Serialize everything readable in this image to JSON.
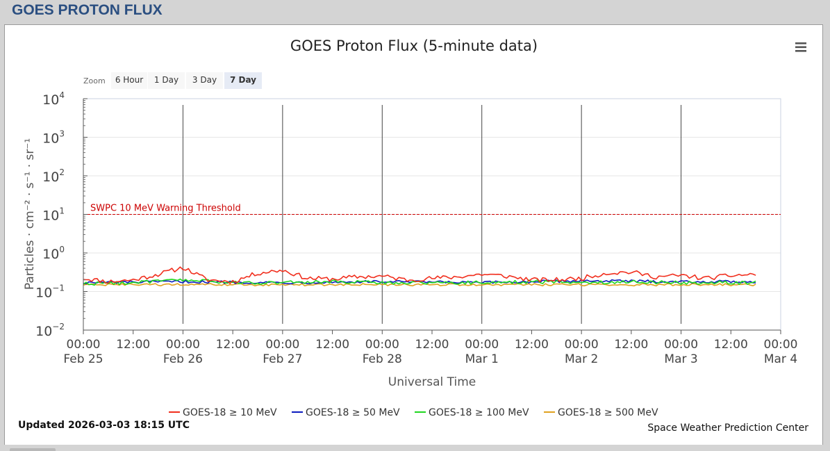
{
  "page": {
    "title": "GOES PROTON FLUX"
  },
  "menu_icon": "hamburger-menu-icon",
  "zoom": {
    "label": "Zoom",
    "buttons": [
      {
        "label": "6 Hour",
        "selected": false
      },
      {
        "label": "1 Day",
        "selected": false
      },
      {
        "label": "3 Day",
        "selected": false
      },
      {
        "label": "7 Day",
        "selected": true
      }
    ]
  },
  "footer": {
    "updated": "Updated 2026-03-03 18:15 UTC",
    "credit": "Space Weather Prediction Center"
  },
  "chart_data": {
    "type": "line",
    "title": "GOES Proton Flux (5-minute data)",
    "xlabel": "Universal Time",
    "ylabel": "Particles · cm⁻² · s⁻¹ · sr⁻¹",
    "y_scale": "log",
    "ylim": [
      0.01,
      10000
    ],
    "y_ticks": [
      {
        "base": "10",
        "exp": "4"
      },
      {
        "base": "10",
        "exp": "3"
      },
      {
        "base": "10",
        "exp": "2"
      },
      {
        "base": "10",
        "exp": "1"
      },
      {
        "base": "10",
        "exp": "0"
      },
      {
        "base": "10",
        "exp": "−1"
      },
      {
        "base": "10",
        "exp": "−2"
      }
    ],
    "xlim": [
      "2026-02-25 00:00",
      "2026-03-04 00:00"
    ],
    "x_ticks": [
      {
        "time": "00:00",
        "date": "Feb 25"
      },
      {
        "time": "12:00",
        "date": ""
      },
      {
        "time": "00:00",
        "date": "Feb 26"
      },
      {
        "time": "12:00",
        "date": ""
      },
      {
        "time": "00:00",
        "date": "Feb 27"
      },
      {
        "time": "12:00",
        "date": ""
      },
      {
        "time": "00:00",
        "date": "Feb 28"
      },
      {
        "time": "12:00",
        "date": ""
      },
      {
        "time": "00:00",
        "date": "Mar 1"
      },
      {
        "time": "12:00",
        "date": ""
      },
      {
        "time": "00:00",
        "date": "Mar 2"
      },
      {
        "time": "12:00",
        "date": ""
      },
      {
        "time": "00:00",
        "date": "Mar 3"
      },
      {
        "time": "12:00",
        "date": ""
      },
      {
        "time": "00:00",
        "date": "Mar 4"
      }
    ],
    "day_lines": [
      "2026-02-26 00:00",
      "2026-02-27 00:00",
      "2026-02-28 00:00",
      "2026-03-01 00:00",
      "2026-03-02 00:00",
      "2026-03-03 00:00"
    ],
    "threshold": {
      "label": "SWPC 10 MeV Warning Threshold",
      "value": 10,
      "color": "#cc0000"
    },
    "legend_position": "bottom-center",
    "series": [
      {
        "name": "GOES-18 ≥ 10 MeV",
        "color": "#f12e1d",
        "x": [
          "2026-02-25 00:00",
          "2026-02-25 06:00",
          "2026-02-25 12:00",
          "2026-02-25 18:00",
          "2026-02-26 00:00",
          "2026-02-26 06:00",
          "2026-02-26 12:00",
          "2026-02-26 18:00",
          "2026-02-27 00:00",
          "2026-02-27 06:00",
          "2026-02-27 12:00",
          "2026-02-27 18:00",
          "2026-02-28 00:00",
          "2026-02-28 06:00",
          "2026-02-28 12:00",
          "2026-02-28 18:00",
          "2026-03-01 00:00",
          "2026-03-01 06:00",
          "2026-03-01 12:00",
          "2026-03-01 18:00",
          "2026-03-02 00:00",
          "2026-03-02 06:00",
          "2026-03-02 12:00",
          "2026-03-02 18:00",
          "2026-03-03 00:00",
          "2026-03-03 06:00",
          "2026-03-03 12:00",
          "2026-03-03 18:15"
        ],
        "values": [
          0.22,
          0.18,
          0.2,
          0.28,
          0.42,
          0.2,
          0.18,
          0.3,
          0.36,
          0.22,
          0.21,
          0.24,
          0.25,
          0.2,
          0.22,
          0.24,
          0.28,
          0.25,
          0.2,
          0.2,
          0.22,
          0.3,
          0.32,
          0.24,
          0.26,
          0.22,
          0.26,
          0.28
        ]
      },
      {
        "name": "GOES-18 ≥ 50 MeV",
        "color": "#0b1bbf",
        "x": [
          "2026-02-25 00:00",
          "2026-02-26 00:00",
          "2026-02-27 00:00",
          "2026-02-28 00:00",
          "2026-03-01 00:00",
          "2026-03-02 00:00",
          "2026-03-03 00:00",
          "2026-03-03 18:15"
        ],
        "values": [
          0.17,
          0.18,
          0.17,
          0.18,
          0.17,
          0.19,
          0.18,
          0.18
        ]
      },
      {
        "name": "GOES-18 ≥ 100 MeV",
        "color": "#1fd61f",
        "x": [
          "2026-02-25 00:00",
          "2026-02-25 12:00",
          "2026-02-26 00:00",
          "2026-02-26 12:00",
          "2026-02-27 00:00",
          "2026-02-27 12:00",
          "2026-02-28 00:00",
          "2026-02-28 12:00",
          "2026-03-01 00:00",
          "2026-03-01 12:00",
          "2026-03-02 00:00",
          "2026-03-02 12:00",
          "2026-03-03 00:00",
          "2026-03-03 18:15"
        ],
        "values": [
          0.16,
          0.17,
          0.2,
          0.17,
          0.17,
          0.18,
          0.17,
          0.17,
          0.17,
          0.18,
          0.17,
          0.18,
          0.17,
          0.17
        ]
      },
      {
        "name": "GOES-18 ≥ 500 MeV",
        "color": "#e0a11f",
        "x": [
          "2026-02-25 00:00",
          "2026-02-26 00:00",
          "2026-02-27 00:00",
          "2026-02-28 00:00",
          "2026-03-01 00:00",
          "2026-03-02 00:00",
          "2026-03-03 00:00",
          "2026-03-03 18:15"
        ],
        "values": [
          0.15,
          0.15,
          0.15,
          0.15,
          0.15,
          0.15,
          0.15,
          0.15
        ]
      }
    ]
  }
}
